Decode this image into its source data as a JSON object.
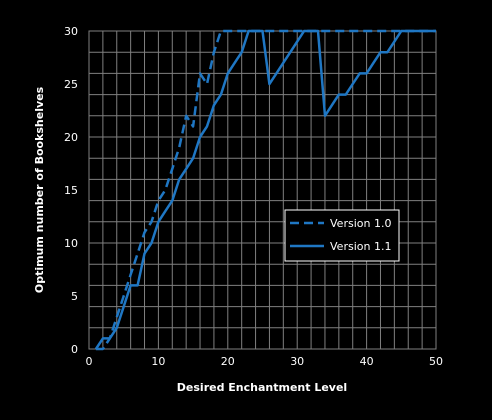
{
  "chart_data": {
    "type": "line",
    "title": "",
    "xlabel": "Desired Enchantment Level",
    "ylabel": "Optimum number of Bookshelves",
    "xlim": [
      0,
      50
    ],
    "ylim": [
      0,
      30
    ],
    "x_ticks": [
      0,
      10,
      20,
      30,
      40,
      50
    ],
    "y_ticks": [
      0,
      5,
      10,
      15,
      20,
      25,
      30
    ],
    "grid": true,
    "legend": {
      "placement": "right-middle"
    },
    "colors": {
      "background": "#000000",
      "grid": "#808080",
      "line": "#1f77c4",
      "text": "#ffffff"
    },
    "series": [
      {
        "name": "Version 1.0",
        "style": "dashed",
        "x": [
          1,
          2,
          3,
          4,
          5,
          6,
          7,
          8,
          9,
          10,
          11,
          12,
          13,
          14,
          15,
          16,
          17,
          18,
          19,
          20,
          25,
          30,
          35,
          40,
          45,
          50
        ],
        "y": [
          0,
          0,
          1,
          3,
          5,
          7,
          9,
          11,
          12,
          14,
          15,
          17,
          19,
          22,
          21,
          26,
          25,
          28,
          30,
          30,
          30,
          30,
          30,
          30,
          30,
          30
        ]
      },
      {
        "name": "Version 1.1",
        "style": "solid",
        "x": [
          1,
          2,
          3,
          4,
          5,
          6,
          7,
          8,
          9,
          10,
          11,
          12,
          13,
          14,
          15,
          16,
          17,
          18,
          19,
          20,
          21,
          22,
          23,
          24,
          25,
          26,
          27,
          28,
          29,
          30,
          31,
          32,
          33,
          34,
          35,
          36,
          37,
          38,
          39,
          40,
          41,
          42,
          43,
          44,
          45,
          46,
          50
        ],
        "y": [
          0,
          1,
          1,
          2,
          4,
          6,
          6,
          9,
          10,
          12,
          13,
          14,
          16,
          17,
          18,
          20,
          21,
          23,
          24,
          26,
          27,
          28,
          30,
          30,
          30,
          25,
          26,
          27,
          28,
          29,
          30,
          30,
          30,
          22,
          23,
          24,
          24,
          25,
          26,
          26,
          27,
          28,
          28,
          29,
          30,
          30,
          30
        ]
      }
    ]
  }
}
